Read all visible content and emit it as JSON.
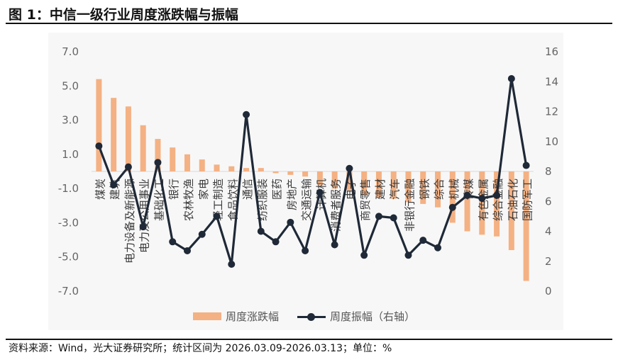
{
  "header": {
    "title": "图 1：中信一级行业周度涨跌幅与振幅"
  },
  "footer": {
    "source": "资料来源：Wind，光大证券研究所；统计区间为 2026.03.09-2026.03.13；单位：%"
  },
  "legend": {
    "bar_label": "周度涨跌幅",
    "line_label": "周度振幅（右轴）"
  },
  "colors": {
    "bar": "#f4b183",
    "line": "#1f2937",
    "axis_text": "#666666",
    "plot_bg": "#f7f7f7"
  },
  "chart_data": {
    "type": "bar+line",
    "categories": [
      "煤炭",
      "建筑",
      "电力设备及新能源",
      "电力及公用事业",
      "基础化工",
      "银行",
      "农林牧渔",
      "家电",
      "轻工制造",
      "食品饮料",
      "通信",
      "纺织服装",
      "医药",
      "房地产",
      "交通运输",
      "计算机",
      "消费者服务",
      "电子",
      "商贸零售",
      "建材",
      "汽车",
      "非银行金融",
      "钢铁",
      "综合",
      "机械",
      "传媒",
      "有色金属",
      "综合金融",
      "石油石化",
      "国防军工"
    ],
    "series": [
      {
        "name": "周度涨跌幅",
        "axis": "left",
        "type": "bar",
        "values": [
          5.4,
          4.3,
          3.8,
          2.7,
          1.9,
          1.4,
          1.0,
          0.7,
          0.4,
          0.3,
          0.2,
          0.2,
          -0.1,
          -0.2,
          -0.3,
          -0.8,
          -1.0,
          -1.1,
          -1.4,
          -1.5,
          -1.6,
          -1.8,
          -1.9,
          -2.1,
          -3.0,
          -3.5,
          -3.7,
          -3.8,
          -4.6,
          -6.4
        ]
      },
      {
        "name": "周度振幅（右轴）",
        "axis": "right",
        "type": "line",
        "values": [
          9.7,
          7.1,
          8.3,
          4.3,
          8.6,
          3.3,
          2.7,
          3.8,
          5.0,
          1.8,
          11.8,
          4.0,
          3.3,
          4.6,
          2.7,
          6.6,
          3.1,
          8.2,
          2.4,
          5.0,
          4.9,
          2.4,
          3.4,
          2.9,
          5.6,
          6.4,
          6.2,
          6.4,
          14.2,
          8.4
        ]
      }
    ],
    "y_left": {
      "ticks": [
        "7.0",
        "5.0",
        "3.0",
        "1.0",
        "-1.0",
        "-3.0",
        "-5.0",
        "-7.0"
      ],
      "range": [
        -7,
        7
      ]
    },
    "y_right": {
      "ticks": [
        "16",
        "14",
        "12",
        "10",
        "8",
        "6",
        "4",
        "2",
        "0"
      ],
      "range": [
        0,
        16
      ]
    },
    "legend_position": "bottom"
  }
}
